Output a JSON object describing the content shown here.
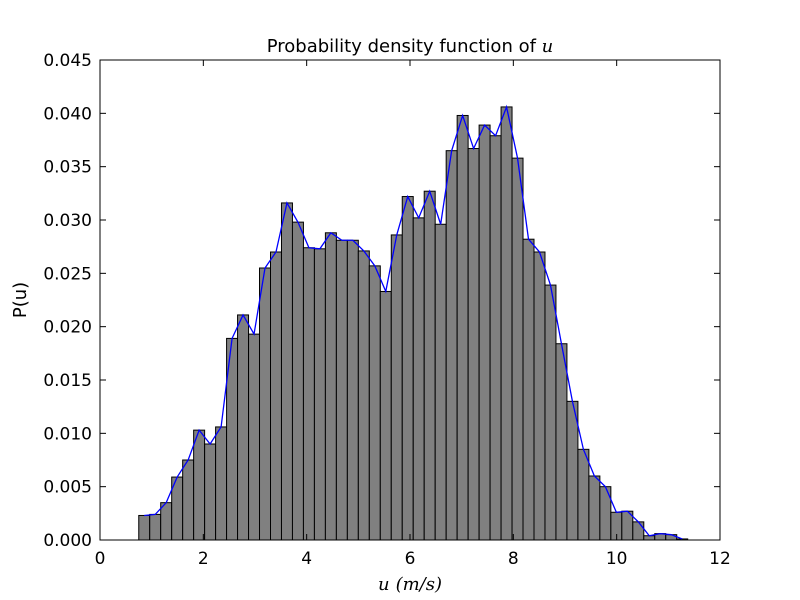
{
  "chart_data": {
    "type": "bar",
    "title_prefix": "Probability density function of ",
    "title_var": "u",
    "xlabel_var": "u",
    "xlabel_unit": "(m/s)",
    "ylabel": "P(u)",
    "xlim": [
      0,
      12
    ],
    "ylim": [
      0,
      0.045
    ],
    "xticks": [
      "0",
      "2",
      "4",
      "6",
      "8",
      "10",
      "12"
    ],
    "yticks": [
      "0.000",
      "0.005",
      "0.010",
      "0.015",
      "0.020",
      "0.025",
      "0.030",
      "0.035",
      "0.040",
      "0.045"
    ],
    "bar_color": "#808080",
    "line_color": "#0000ff",
    "bin_start": 0.75,
    "bin_width": 0.2125,
    "values": [
      0.0023,
      0.0024,
      0.0035,
      0.0059,
      0.0075,
      0.0103,
      0.009,
      0.0106,
      0.0189,
      0.0211,
      0.0193,
      0.0255,
      0.027,
      0.0316,
      0.0298,
      0.0274,
      0.0273,
      0.0288,
      0.0281,
      0.0281,
      0.0271,
      0.0257,
      0.0233,
      0.0286,
      0.0322,
      0.0302,
      0.0327,
      0.0296,
      0.0365,
      0.0398,
      0.0367,
      0.0389,
      0.0379,
      0.0406,
      0.0358,
      0.0282,
      0.027,
      0.0239,
      0.0184,
      0.013,
      0.0085,
      0.006,
      0.005,
      0.0026,
      0.0027,
      0.0017,
      0.0004,
      0.0006,
      0.0005,
      0.0001
    ]
  }
}
